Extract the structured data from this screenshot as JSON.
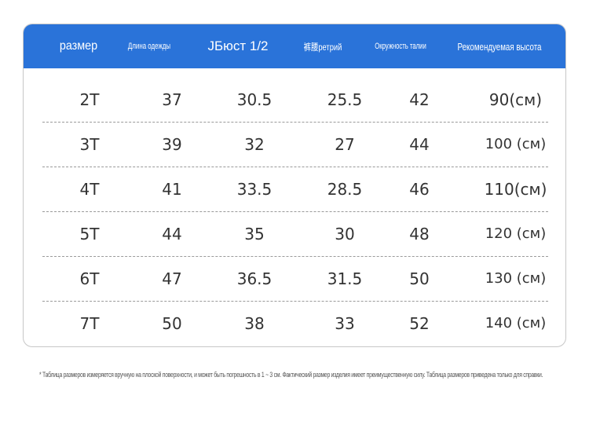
{
  "table": {
    "headers": [
      "размер",
      "Длина одежды",
      "ЈБюст 1/2",
      "裤腰ретрий",
      "Окружность талии",
      "Рекомендуемая высота"
    ],
    "rows": [
      [
        "2T",
        "37",
        "30.5",
        "25.5",
        "42",
        "90(см)"
      ],
      [
        "3T",
        "39",
        "32",
        "27",
        "44",
        "100 (см)"
      ],
      [
        "4T",
        "41",
        "33.5",
        "28.5",
        "46",
        "110(см)"
      ],
      [
        "5T",
        "44",
        "35",
        "30",
        "48",
        "120 (см)"
      ],
      [
        "6T",
        "47",
        "36.5",
        "31.5",
        "50",
        "130 (см)"
      ],
      [
        "7T",
        "50",
        "38",
        "33",
        "52",
        "140 (см)"
      ]
    ]
  },
  "footnote": "* Таблица размеров измеряется вручную на плоской поверхности, и может быть погрешность в 1 ~ 3 см. Фактический размер изделия имеет преимущественную силу. Таблица размеров приведена только для справки.",
  "colors": {
    "header_bg": "#2a73d9",
    "header_text": "#ffffff",
    "border": "#c7c7c7"
  }
}
